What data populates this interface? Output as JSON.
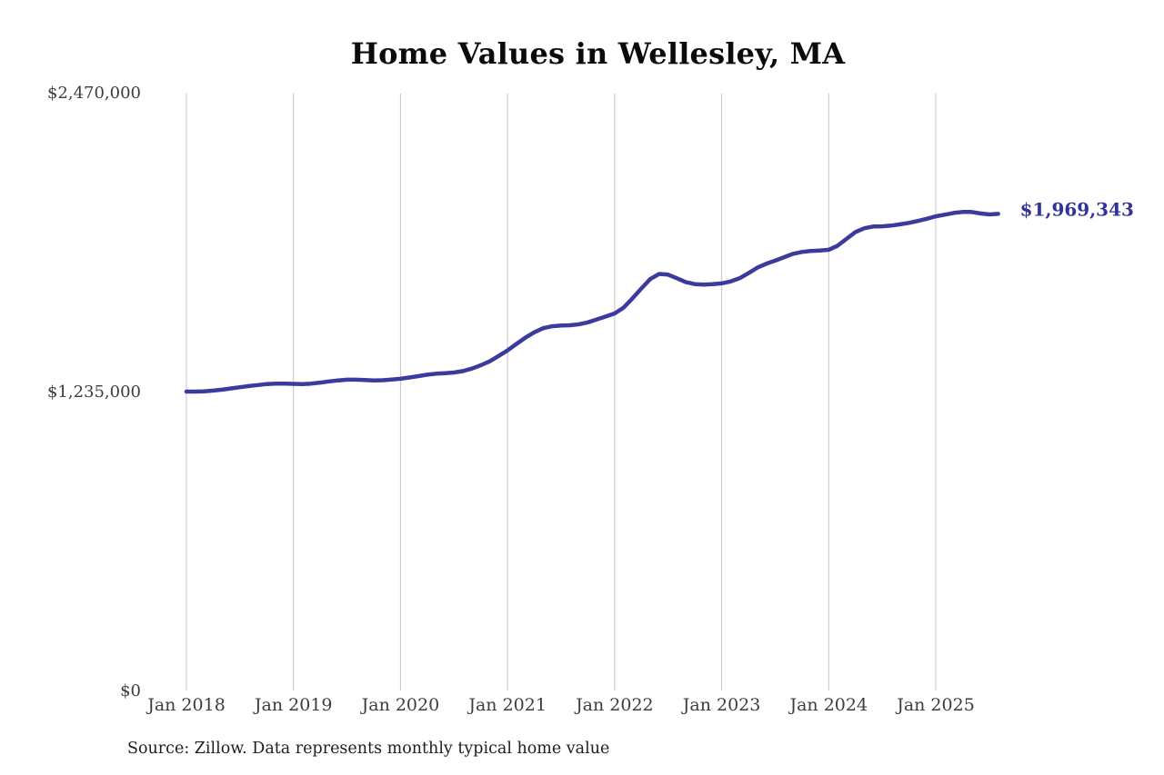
{
  "chart_data": {
    "type": "line",
    "title": "Home Values in Wellesley, MA",
    "source": "Source: Zillow. Data represents monthly typical home value",
    "end_label": "$1,969,343",
    "end_value": 1969343,
    "x_start": "2018-01",
    "x_interval": "month",
    "ylim": [
      0,
      2470000
    ],
    "grid": "vertical-only",
    "legend": "none",
    "colors": {
      "line": "#3b3b9e",
      "end_label": "#32329b",
      "gridline": "#c4c4c4",
      "tick_text": "#3d3d3d"
    },
    "y_ticks": [
      {
        "label": "$0",
        "value": 0
      },
      {
        "label": "$1,235,000",
        "value": 1235000
      },
      {
        "label": "$2,470,000",
        "value": 2470000
      }
    ],
    "x_ticks": [
      {
        "label": "Jan 2018",
        "month_index": 0
      },
      {
        "label": "Jan 2019",
        "month_index": 12
      },
      {
        "label": "Jan 2020",
        "month_index": 24
      },
      {
        "label": "Jan 2021",
        "month_index": 36
      },
      {
        "label": "Jan 2022",
        "month_index": 48
      },
      {
        "label": "Jan 2023",
        "month_index": 60
      },
      {
        "label": "Jan 2024",
        "month_index": 72
      },
      {
        "label": "Jan 2025",
        "month_index": 84
      }
    ],
    "series": [
      {
        "name": "Monthly typical home value",
        "values": [
          1235000,
          1235000,
          1236000,
          1239000,
          1243000,
          1248000,
          1253000,
          1258000,
          1262000,
          1266000,
          1268000,
          1268000,
          1267000,
          1266000,
          1268000,
          1272000,
          1277000,
          1281000,
          1284000,
          1284000,
          1283000,
          1281000,
          1282000,
          1285000,
          1288000,
          1293000,
          1299000,
          1305000,
          1309000,
          1311000,
          1314000,
          1320000,
          1330000,
          1344000,
          1360000,
          1382000,
          1405000,
          1432000,
          1458000,
          1480000,
          1497000,
          1505000,
          1508000,
          1509000,
          1513000,
          1521000,
          1533000,
          1545000,
          1558000,
          1582000,
          1620000,
          1661000,
          1700000,
          1721000,
          1718000,
          1703000,
          1687000,
          1679000,
          1677000,
          1679000,
          1682000,
          1690000,
          1703000,
          1724000,
          1747000,
          1763000,
          1776000,
          1790000,
          1804000,
          1812000,
          1816000,
          1818000,
          1821000,
          1838000,
          1866000,
          1894000,
          1910000,
          1917000,
          1918000,
          1921000,
          1926000,
          1932000,
          1940000,
          1949000,
          1959000,
          1966000,
          1973000,
          1977000,
          1977000,
          1971000,
          1967000,
          1969343
        ]
      }
    ]
  }
}
